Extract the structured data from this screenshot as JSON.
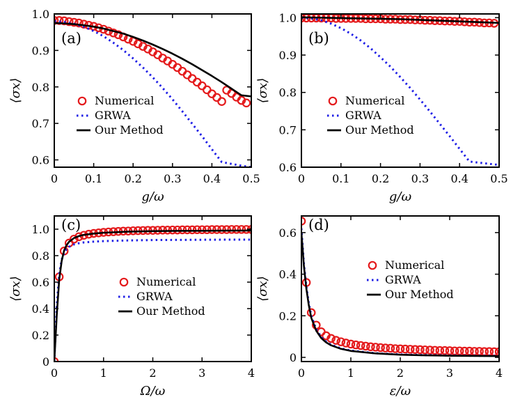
{
  "figure": {
    "legend_entries": [
      "Numerical",
      "GRWA",
      "Our Method"
    ]
  },
  "colors": {
    "numerical": "#e41a1c",
    "grwa": "#1f1fe6",
    "our_method": "#000000"
  },
  "chart_data": [
    {
      "type": "line",
      "panel_label": "(a)",
      "xlabel": "g/ω",
      "ylabel": "⟨σx⟩",
      "xlim": [
        0,
        0.5
      ],
      "ylim": [
        0.58,
        1.0
      ],
      "xticks": [
        0,
        0.1,
        0.2,
        0.3,
        0.4,
        0.5
      ],
      "xtick_labels": [
        "0",
        "0.1",
        "0.2",
        "0.3",
        "0.4",
        "0.5"
      ],
      "yticks": [
        0.6,
        0.7,
        0.8,
        0.9,
        1.0
      ],
      "ytick_labels": [
        "0.6",
        "0.7",
        "0.8",
        "0.9",
        "1.0"
      ],
      "legend_position": "center-left",
      "series": [
        {
          "name": "Numerical",
          "style": "circles",
          "x": [
            0.0,
            0.0125,
            0.025,
            0.0375,
            0.05,
            0.0625,
            0.075,
            0.0875,
            0.1,
            0.1125,
            0.125,
            0.1375,
            0.15,
            0.1625,
            0.175,
            0.1875,
            0.2,
            0.2125,
            0.225,
            0.2375,
            0.25,
            0.2625,
            0.275,
            0.2875,
            0.3,
            0.3125,
            0.325,
            0.3375,
            0.35,
            0.3625,
            0.375,
            0.3875,
            0.4,
            0.4125,
            0.425,
            0.4375,
            0.45,
            0.4625,
            0.475,
            0.4875
          ],
          "y": [
            0.982,
            0.982,
            0.981,
            0.979,
            0.977,
            0.975,
            0.972,
            0.969,
            0.966,
            0.962,
            0.958,
            0.953,
            0.948,
            0.943,
            0.937,
            0.931,
            0.925,
            0.918,
            0.911,
            0.904,
            0.896,
            0.888,
            0.879,
            0.871,
            0.862,
            0.853,
            0.843,
            0.833,
            0.823,
            0.813,
            0.803,
            0.792,
            0.781,
            0.771,
            0.76,
            0.791,
            0.782,
            0.772,
            0.763,
            0.756
          ]
        },
        {
          "name": "GRWA",
          "style": "dotted",
          "x": [
            0.0,
            0.025,
            0.05,
            0.075,
            0.1,
            0.125,
            0.15,
            0.175,
            0.2,
            0.225,
            0.25,
            0.275,
            0.3,
            0.325,
            0.35,
            0.375,
            0.4,
            0.425,
            0.45,
            0.475,
            0.5
          ],
          "y": [
            0.98,
            0.978,
            0.973,
            0.965,
            0.953,
            0.939,
            0.921,
            0.901,
            0.878,
            0.853,
            0.826,
            0.797,
            0.766,
            0.733,
            0.699,
            0.665,
            0.629,
            0.594,
            0.589,
            0.584,
            0.58
          ]
        },
        {
          "name": "Our Method",
          "style": "solid",
          "x": [
            0.0,
            0.025,
            0.05,
            0.075,
            0.1,
            0.125,
            0.15,
            0.175,
            0.2,
            0.225,
            0.25,
            0.275,
            0.3,
            0.325,
            0.35,
            0.375,
            0.4,
            0.425,
            0.45,
            0.475,
            0.5
          ],
          "y": [
            0.975,
            0.974,
            0.972,
            0.969,
            0.965,
            0.96,
            0.953,
            0.946,
            0.937,
            0.927,
            0.916,
            0.904,
            0.891,
            0.877,
            0.862,
            0.846,
            0.83,
            0.813,
            0.795,
            0.777,
            0.774
          ]
        }
      ]
    },
    {
      "type": "line",
      "panel_label": "(b)",
      "xlabel": "g/ω",
      "ylabel": "⟨σx⟩",
      "xlim": [
        0,
        0.5
      ],
      "ylim": [
        0.6,
        1.01
      ],
      "xticks": [
        0,
        0.1,
        0.2,
        0.3,
        0.4,
        0.5
      ],
      "xtick_labels": [
        "0",
        "0.1",
        "0.2",
        "0.3",
        "0.4",
        "0.5"
      ],
      "yticks": [
        0.6,
        0.7,
        0.8,
        0.9,
        1.0
      ],
      "ytick_labels": [
        "0.6",
        "0.7",
        "0.8",
        "0.9",
        "1.0"
      ],
      "legend_position": "center-left",
      "series": [
        {
          "name": "Numerical",
          "style": "circles",
          "x": [
            0.0,
            0.0125,
            0.025,
            0.0375,
            0.05,
            0.0625,
            0.075,
            0.0875,
            0.1,
            0.1125,
            0.125,
            0.1375,
            0.15,
            0.1625,
            0.175,
            0.1875,
            0.2,
            0.2125,
            0.225,
            0.2375,
            0.25,
            0.2625,
            0.275,
            0.2875,
            0.3,
            0.3125,
            0.325,
            0.3375,
            0.35,
            0.3625,
            0.375,
            0.3875,
            0.4,
            0.4125,
            0.425,
            0.4375,
            0.45,
            0.4625,
            0.475,
            0.4875
          ],
          "y": [
            0.999,
            0.999,
            0.999,
            0.999,
            0.999,
            0.999,
            0.999,
            0.998,
            0.998,
            0.998,
            0.998,
            0.998,
            0.998,
            0.997,
            0.997,
            0.997,
            0.997,
            0.996,
            0.996,
            0.996,
            0.995,
            0.995,
            0.995,
            0.994,
            0.994,
            0.993,
            0.993,
            0.992,
            0.992,
            0.991,
            0.991,
            0.99,
            0.99,
            0.989,
            0.988,
            0.988,
            0.987,
            0.986,
            0.986,
            0.985
          ]
        },
        {
          "name": "GRWA",
          "style": "dotted",
          "x": [
            0.0,
            0.025,
            0.05,
            0.075,
            0.1,
            0.125,
            0.15,
            0.175,
            0.2,
            0.225,
            0.25,
            0.275,
            0.3,
            0.325,
            0.35,
            0.375,
            0.4,
            0.425,
            0.45,
            0.475,
            0.5
          ],
          "y": [
            1.0,
            0.998,
            0.993,
            0.984,
            0.972,
            0.957,
            0.939,
            0.918,
            0.894,
            0.869,
            0.841,
            0.812,
            0.781,
            0.749,
            0.716,
            0.683,
            0.649,
            0.615,
            0.612,
            0.609,
            0.606
          ]
        },
        {
          "name": "Our Method",
          "style": "solid",
          "x": [
            0.0,
            0.05,
            0.1,
            0.15,
            0.2,
            0.25,
            0.3,
            0.35,
            0.4,
            0.45,
            0.5
          ],
          "y": [
            1.001,
            1.0,
            0.999,
            0.998,
            0.997,
            0.996,
            0.994,
            0.992,
            0.99,
            0.988,
            0.986
          ]
        }
      ]
    },
    {
      "type": "line",
      "panel_label": "(c)",
      "xlabel": "Ω/ω",
      "ylabel": "⟨σx⟩",
      "xlim": [
        0,
        4
      ],
      "ylim": [
        0,
        1.1
      ],
      "xticks": [
        0,
        1,
        2,
        3,
        4
      ],
      "xtick_labels": [
        "0",
        "1",
        "2",
        "3",
        "4"
      ],
      "yticks": [
        0,
        0.2,
        0.4,
        0.6,
        0.8,
        1.0
      ],
      "ytick_labels": [
        "0",
        "0.2",
        "0.4",
        "0.6",
        "0.8",
        "1.0"
      ],
      "legend_position": "center-right",
      "series": [
        {
          "name": "Numerical",
          "style": "circles",
          "x": [
            0.0,
            0.1,
            0.2,
            0.3,
            0.4,
            0.5,
            0.6,
            0.7,
            0.8,
            0.9,
            1.0,
            1.1,
            1.2,
            1.3,
            1.4,
            1.5,
            1.6,
            1.7,
            1.8,
            1.9,
            2.0,
            2.1,
            2.2,
            2.3,
            2.4,
            2.5,
            2.6,
            2.7,
            2.8,
            2.9,
            3.0,
            3.1,
            3.2,
            3.3,
            3.4,
            3.5,
            3.6,
            3.7,
            3.8,
            3.9,
            4.0
          ],
          "y": [
            0.0,
            0.64,
            0.835,
            0.895,
            0.925,
            0.943,
            0.954,
            0.962,
            0.968,
            0.972,
            0.976,
            0.979,
            0.981,
            0.983,
            0.985,
            0.986,
            0.988,
            0.989,
            0.99,
            0.991,
            0.991,
            0.992,
            0.993,
            0.993,
            0.994,
            0.994,
            0.995,
            0.995,
            0.995,
            0.996,
            0.996,
            0.996,
            0.997,
            0.997,
            0.997,
            0.997,
            0.998,
            0.998,
            0.998,
            0.998,
            0.998
          ]
        },
        {
          "name": "GRWA",
          "style": "dotted",
          "x": [
            0.0,
            0.05,
            0.1,
            0.15,
            0.2,
            0.25,
            0.3,
            0.4,
            0.5,
            0.6,
            0.8,
            1.0,
            1.5,
            2.0,
            2.5,
            3.0,
            3.5,
            4.0
          ],
          "y": [
            0.0,
            0.42,
            0.66,
            0.77,
            0.82,
            0.85,
            0.867,
            0.885,
            0.894,
            0.9,
            0.906,
            0.91,
            0.915,
            0.918,
            0.919,
            0.92,
            0.921,
            0.921
          ]
        },
        {
          "name": "Our Method",
          "style": "solid",
          "x": [
            0.0,
            0.05,
            0.1,
            0.15,
            0.2,
            0.25,
            0.3,
            0.4,
            0.5,
            0.6,
            0.8,
            1.0,
            1.5,
            2.0,
            2.5,
            3.0,
            3.5,
            4.0
          ],
          "y": [
            0.0,
            0.35,
            0.62,
            0.76,
            0.84,
            0.88,
            0.905,
            0.933,
            0.948,
            0.957,
            0.967,
            0.973,
            0.981,
            0.985,
            0.987,
            0.988,
            0.989,
            0.99
          ]
        }
      ]
    },
    {
      "type": "line",
      "panel_label": "(d)",
      "xlabel": "ε/ω",
      "ylabel": "⟨σx⟩",
      "xlim": [
        0,
        4
      ],
      "ylim": [
        -0.02,
        0.68
      ],
      "xticks": [
        0,
        1,
        2,
        3,
        4
      ],
      "xtick_labels": [
        "0",
        "1",
        "2",
        "3",
        "4"
      ],
      "yticks": [
        0,
        0.2,
        0.4,
        0.6
      ],
      "ytick_labels": [
        "0",
        "0.2",
        "0.4",
        "0.6"
      ],
      "legend_position": "upper-right",
      "series": [
        {
          "name": "Numerical",
          "style": "circles",
          "x": [
            0.0,
            0.1,
            0.2,
            0.3,
            0.4,
            0.5,
            0.6,
            0.7,
            0.8,
            0.9,
            1.0,
            1.1,
            1.2,
            1.3,
            1.4,
            1.5,
            1.6,
            1.7,
            1.8,
            1.9,
            2.0,
            2.1,
            2.2,
            2.3,
            2.4,
            2.5,
            2.6,
            2.7,
            2.8,
            2.9,
            3.0,
            3.1,
            3.2,
            3.3,
            3.4,
            3.5,
            3.6,
            3.7,
            3.8,
            3.9,
            4.0
          ],
          "y": [
            0.655,
            0.36,
            0.215,
            0.155,
            0.123,
            0.104,
            0.091,
            0.082,
            0.075,
            0.069,
            0.064,
            0.06,
            0.057,
            0.054,
            0.051,
            0.049,
            0.047,
            0.045,
            0.044,
            0.042,
            0.041,
            0.04,
            0.039,
            0.038,
            0.037,
            0.036,
            0.035,
            0.034,
            0.033,
            0.033,
            0.032,
            0.031,
            0.031,
            0.03,
            0.03,
            0.029,
            0.029,
            0.028,
            0.028,
            0.027,
            0.027
          ]
        },
        {
          "name": "GRWA",
          "style": "dotted",
          "x": [
            0.0,
            0.05,
            0.1,
            0.15,
            0.2,
            0.3,
            0.4,
            0.5,
            0.6,
            0.8,
            1.0,
            1.5,
            2.0,
            2.5,
            3.0,
            3.5,
            4.0
          ],
          "y": [
            0.62,
            0.45,
            0.34,
            0.26,
            0.2,
            0.135,
            0.098,
            0.076,
            0.061,
            0.043,
            0.033,
            0.02,
            0.014,
            0.011,
            0.009,
            0.008,
            0.007
          ]
        },
        {
          "name": "Our Method",
          "style": "solid",
          "x": [
            0.0,
            0.05,
            0.1,
            0.15,
            0.2,
            0.3,
            0.4,
            0.5,
            0.6,
            0.8,
            1.0,
            1.5,
            2.0,
            2.5,
            3.0,
            3.5,
            4.0
          ],
          "y": [
            0.6,
            0.44,
            0.33,
            0.25,
            0.19,
            0.128,
            0.093,
            0.072,
            0.058,
            0.041,
            0.031,
            0.019,
            0.013,
            0.01,
            0.008,
            0.007,
            0.006
          ]
        }
      ]
    }
  ]
}
